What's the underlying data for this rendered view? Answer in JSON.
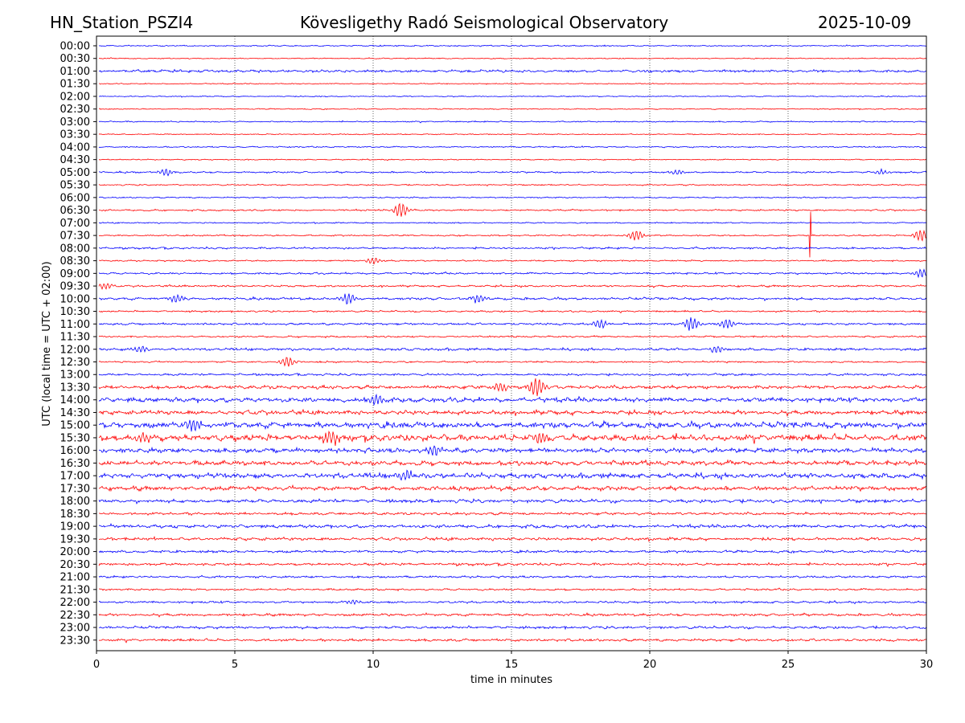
{
  "header": {
    "station": "HN_Station_PSZI4",
    "observatory": "Kövesligethy Radó Seismological Observatory",
    "date": "2025-10-09"
  },
  "chart_data": {
    "type": "line",
    "title": "Kövesligethy Radó Seismological Observatory",
    "xlabel": "time in minutes",
    "ylabel": "UTC (local time = UTC + 02:00)",
    "xlim": [
      0,
      30
    ],
    "xticks": [
      "0",
      "5",
      "10",
      "15",
      "20",
      "25",
      "30"
    ],
    "grid": "vertical dotted at every 5 minutes",
    "colors": {
      "even_rows": "#0000ff",
      "odd_rows": "#ff0000"
    },
    "rows": [
      "00:00",
      "00:30",
      "01:00",
      "01:30",
      "02:00",
      "02:30",
      "03:00",
      "03:30",
      "04:00",
      "04:30",
      "05:00",
      "05:30",
      "06:00",
      "06:30",
      "07:00",
      "07:30",
      "08:00",
      "08:30",
      "09:00",
      "09:30",
      "10:00",
      "10:30",
      "11:00",
      "11:30",
      "12:00",
      "12:30",
      "13:00",
      "13:30",
      "14:00",
      "14:30",
      "15:00",
      "15:30",
      "16:00",
      "16:30",
      "17:00",
      "17:30",
      "18:00",
      "18:30",
      "19:00",
      "19:30",
      "20:00",
      "20:30",
      "21:00",
      "21:30",
      "22:00",
      "22:30",
      "23:00",
      "23:30"
    ],
    "noise_level": [
      0.6,
      0.5,
      1.2,
      0.5,
      0.5,
      0.5,
      0.6,
      0.5,
      0.6,
      0.5,
      0.8,
      0.6,
      0.6,
      0.8,
      0.6,
      0.7,
      0.9,
      0.7,
      0.9,
      0.9,
      1.2,
      0.8,
      1.0,
      0.8,
      1.2,
      0.8,
      1.0,
      1.6,
      2.2,
      2.0,
      2.8,
      3.0,
      2.2,
      2.2,
      2.4,
      2.0,
      1.6,
      1.2,
      1.6,
      1.4,
      1.2,
      1.2,
      1.0,
      0.9,
      1.0,
      1.2,
      1.2,
      1.2
    ],
    "events": [
      {
        "row": "05:00",
        "minute": 2.5,
        "amplitude": 4
      },
      {
        "row": "05:00",
        "minute": 21.0,
        "amplitude": 3
      },
      {
        "row": "05:00",
        "minute": 28.4,
        "amplitude": 3
      },
      {
        "row": "06:30",
        "minute": 11.0,
        "amplitude": 9
      },
      {
        "row": "07:30",
        "minute": 25.8,
        "amplitude": 48
      },
      {
        "row": "07:30",
        "minute": 19.5,
        "amplitude": 6
      },
      {
        "row": "07:30",
        "minute": 29.8,
        "amplitude": 7
      },
      {
        "row": "08:30",
        "minute": 10.0,
        "amplitude": 4
      },
      {
        "row": "09:00",
        "minute": 29.8,
        "amplitude": 5
      },
      {
        "row": "09:30",
        "minute": 0.3,
        "amplitude": 4
      },
      {
        "row": "10:00",
        "minute": 2.9,
        "amplitude": 5
      },
      {
        "row": "10:00",
        "minute": 9.1,
        "amplitude": 7
      },
      {
        "row": "10:00",
        "minute": 13.8,
        "amplitude": 5
      },
      {
        "row": "11:00",
        "minute": 18.2,
        "amplitude": 5
      },
      {
        "row": "11:00",
        "minute": 21.5,
        "amplitude": 8
      },
      {
        "row": "11:00",
        "minute": 22.8,
        "amplitude": 6
      },
      {
        "row": "12:00",
        "minute": 1.6,
        "amplitude": 4
      },
      {
        "row": "12:00",
        "minute": 22.4,
        "amplitude": 4
      },
      {
        "row": "12:30",
        "minute": 6.9,
        "amplitude": 6
      },
      {
        "row": "13:30",
        "minute": 14.6,
        "amplitude": 5
      },
      {
        "row": "13:30",
        "minute": 15.9,
        "amplitude": 12
      },
      {
        "row": "14:00",
        "minute": 10.1,
        "amplitude": 6
      },
      {
        "row": "15:00",
        "minute": 3.5,
        "amplitude": 8
      },
      {
        "row": "15:30",
        "minute": 1.7,
        "amplitude": 6
      },
      {
        "row": "15:30",
        "minute": 8.5,
        "amplitude": 7
      },
      {
        "row": "15:30",
        "minute": 16.0,
        "amplitude": 6
      },
      {
        "row": "16:00",
        "minute": 12.2,
        "amplitude": 6
      },
      {
        "row": "17:00",
        "minute": 11.2,
        "amplitude": 6
      },
      {
        "row": "22:00",
        "minute": 9.3,
        "amplitude": 3
      }
    ]
  }
}
